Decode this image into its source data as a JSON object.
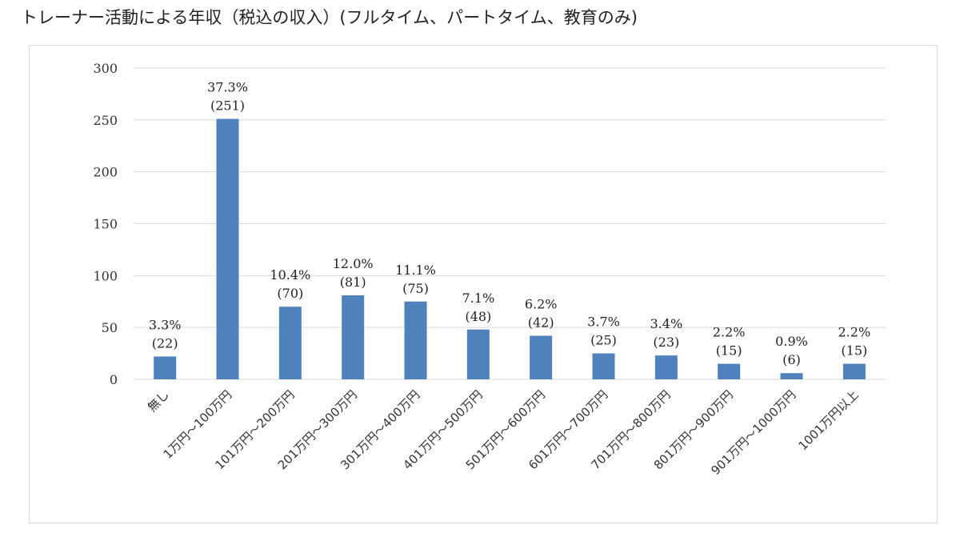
{
  "title": "トレーナー活動による年収（税込の収入）(フルタイム、パートタイム、教育のみ)",
  "colors": {
    "bar": "#4f81bd",
    "grid": "#d9d9d9"
  },
  "chart_data": {
    "type": "bar",
    "title": "",
    "xlabel": "",
    "ylabel": "",
    "ylim": [
      0,
      300
    ],
    "yticks": [
      0,
      50,
      100,
      150,
      200,
      250,
      300
    ],
    "grid": true,
    "legend": "none",
    "categories": [
      "無し",
      "1万円～100万円",
      "101万円～200万円",
      "201万円～300万円",
      "301万円～400万円",
      "401万円～500万円",
      "501万円～600万円",
      "601万円～700万円",
      "701万円～800万円",
      "801万円～900万円",
      "901万円～1000万円",
      "1001万円以上"
    ],
    "values": [
      22,
      251,
      70,
      81,
      75,
      48,
      42,
      25,
      23,
      15,
      6,
      15
    ],
    "percent_labels": [
      "3.3%",
      "37.3%",
      "10.4%",
      "12.0%",
      "11.1%",
      "7.1%",
      "6.2%",
      "3.7%",
      "3.4%",
      "2.2%",
      "0.9%",
      "2.2%"
    ],
    "count_labels": [
      "(22)",
      "(251)",
      "(70)",
      "(81)",
      "(75)",
      "(48)",
      "(42)",
      "(25)",
      "(23)",
      "(15)",
      "(6)",
      "(15)"
    ]
  }
}
